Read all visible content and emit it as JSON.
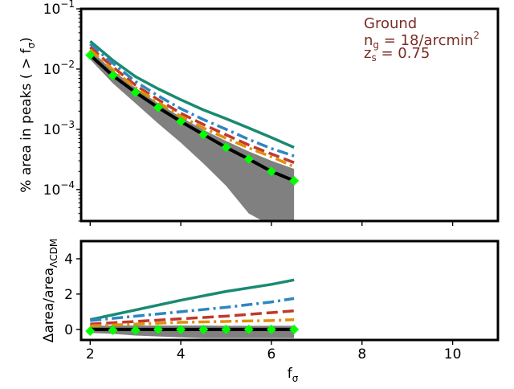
{
  "chart_data": [
    {
      "type": "line",
      "panel": "top",
      "ylabel_parts": {
        "main": "% area in peaks ( > f",
        "sub": "σ",
        "close": ")"
      },
      "yscale": "log",
      "ylim": [
        3e-05,
        0.1
      ],
      "xlim": [
        1.8,
        11.0
      ],
      "y_tick_labels": [
        {
          "value": 0.1,
          "base": "10",
          "exp": "−1"
        },
        {
          "value": 0.01,
          "base": "10",
          "exp": "−2"
        },
        {
          "value": 0.001,
          "base": "10",
          "exp": "−3"
        },
        {
          "value": 0.0001,
          "base": "10",
          "exp": "−4"
        }
      ],
      "annotation": {
        "line1": "Ground",
        "line2_main": "n",
        "line2_sub": "g",
        "line2_rest": " = 18/arcmin",
        "line2_sup": "2",
        "line3_main": "z",
        "line3_sub": "s",
        "line3_rest": " = 0.75",
        "color": "#7b2d26"
      },
      "band": {
        "color": "#808080",
        "x": [
          2.0,
          2.5,
          3.0,
          3.5,
          4.0,
          4.5,
          5.0,
          5.5,
          6.0,
          6.5
        ],
        "upper": [
          0.021,
          0.0095,
          0.0049,
          0.0027,
          0.0016,
          0.00098,
          0.00064,
          0.00043,
          0.0003,
          0.00022
        ],
        "lower": [
          0.0145,
          0.0058,
          0.0027,
          0.00125,
          0.0006,
          0.00027,
          0.000115,
          4e-05,
          2.5e-05,
          2.5e-05
        ]
      },
      "series": [
        {
          "color": "#1a8a72",
          "dash": "solid",
          "width": 3.5,
          "x": [
            2.0,
            2.5,
            3.0,
            3.5,
            4.0,
            4.5,
            5.0,
            5.5,
            6.0,
            6.5
          ],
          "y": [
            0.029,
            0.014,
            0.0075,
            0.0047,
            0.0031,
            0.0021,
            0.0015,
            0.00105,
            0.00073,
            0.0005
          ]
        },
        {
          "color": "#2e86c1",
          "dash": "dashdot",
          "width": 3.5,
          "x": [
            2.0,
            2.5,
            3.0,
            3.5,
            4.0,
            4.5,
            5.0,
            5.5,
            6.0,
            6.5
          ],
          "y": [
            0.026,
            0.0125,
            0.0062,
            0.0036,
            0.0022,
            0.00145,
            0.001,
            0.00068,
            0.00048,
            0.00036
          ]
        },
        {
          "color": "#c0392b",
          "dash": "dashed",
          "width": 3.5,
          "x": [
            2.0,
            2.5,
            3.0,
            3.5,
            4.0,
            4.5,
            5.0,
            5.5,
            6.0,
            6.5
          ],
          "y": [
            0.023,
            0.0108,
            0.0054,
            0.0031,
            0.00185,
            0.0012,
            0.00081,
            0.00055,
            0.00039,
            0.00028
          ]
        },
        {
          "color": "#e08e0b",
          "dash": "dashdot",
          "width": 3.5,
          "x": [
            2.0,
            2.5,
            3.0,
            3.5,
            4.0,
            4.5,
            5.0,
            5.5,
            6.0,
            6.5
          ],
          "y": [
            0.021,
            0.0098,
            0.0049,
            0.0028,
            0.00165,
            0.00105,
            0.00071,
            0.00049,
            0.00035,
            0.00024
          ]
        },
        {
          "color": "#000000",
          "dash": "solid",
          "width": 4,
          "x": [
            2.0,
            2.5,
            3.0,
            3.5,
            4.0,
            4.5,
            5.0,
            5.5,
            6.0,
            6.5
          ],
          "y": [
            0.017,
            0.0078,
            0.0041,
            0.0023,
            0.00135,
            0.00082,
            0.0005,
            0.00032,
            0.0002,
            0.00014
          ]
        },
        {
          "color": "#00ff00",
          "marker": "diamond",
          "dash": "none",
          "width": 0,
          "x": [
            2.0,
            2.5,
            3.0,
            3.5,
            4.0,
            4.5,
            5.0,
            5.5,
            6.0,
            6.5
          ],
          "y": [
            0.017,
            0.0078,
            0.0041,
            0.0023,
            0.00135,
            0.00082,
            0.0005,
            0.00032,
            0.0002,
            0.00014
          ]
        }
      ]
    },
    {
      "type": "line",
      "panel": "bottom",
      "ylabel_parts": {
        "main": "Δarea/area",
        "sub": "ΛCDM"
      },
      "xlabel_parts": {
        "main": "f",
        "sub": "σ"
      },
      "yscale": "linear",
      "ylim": [
        -0.6,
        5.0
      ],
      "xlim": [
        1.8,
        11.0
      ],
      "y_ticks": [
        0,
        2,
        4
      ],
      "y_tick_labels": [
        "0",
        "2",
        "4"
      ],
      "x_ticks": [
        2,
        4,
        6,
        8,
        10
      ],
      "x_tick_labels": [
        "2",
        "4",
        "6",
        "8",
        "10"
      ],
      "band": {
        "color": "#808080",
        "x": [
          2.0,
          2.5,
          3.0,
          3.5,
          4.0,
          4.5,
          5.0,
          5.5,
          6.0,
          6.5
        ],
        "upper": [
          0.2,
          0.22,
          0.22,
          0.22,
          0.22,
          0.22,
          0.2,
          0.2,
          0.2,
          0.2
        ],
        "lower": [
          -0.2,
          -0.25,
          -0.35,
          -0.4,
          -0.45,
          -0.5,
          -0.5,
          -0.5,
          -0.5,
          -0.5
        ]
      },
      "series": [
        {
          "color": "#1a8a72",
          "dash": "solid",
          "width": 3.5,
          "x": [
            2.0,
            3.0,
            4.0,
            5.0,
            6.0,
            6.5
          ],
          "y": [
            0.55,
            1.1,
            1.65,
            2.15,
            2.55,
            2.8
          ]
        },
        {
          "color": "#2e86c1",
          "dash": "dashdot",
          "width": 3.5,
          "x": [
            2.0,
            3.0,
            4.0,
            5.0,
            6.0,
            6.5
          ],
          "y": [
            0.5,
            0.75,
            1.0,
            1.25,
            1.55,
            1.75
          ]
        },
        {
          "color": "#c0392b",
          "dash": "dashed",
          "width": 3.5,
          "x": [
            2.0,
            3.0,
            4.0,
            5.0,
            6.0,
            6.5
          ],
          "y": [
            0.3,
            0.45,
            0.6,
            0.75,
            0.95,
            1.05
          ]
        },
        {
          "color": "#e08e0b",
          "dash": "dashdot",
          "width": 3.5,
          "x": [
            2.0,
            3.0,
            4.0,
            5.0,
            6.0,
            6.5
          ],
          "y": [
            0.2,
            0.3,
            0.4,
            0.45,
            0.5,
            0.55
          ]
        },
        {
          "color": "#000000",
          "dash": "solid",
          "width": 4,
          "x": [
            2.0,
            6.5
          ],
          "y": [
            0.0,
            0.0
          ]
        },
        {
          "color": "#00ff00",
          "marker": "diamond",
          "dash": "none",
          "width": 0,
          "x": [
            2.0,
            2.5,
            3.0,
            3.5,
            4.0,
            4.5,
            5.0,
            5.5,
            6.0,
            6.5
          ],
          "y": [
            -0.1,
            -0.05,
            -0.05,
            0.0,
            0.0,
            0.0,
            0.0,
            0.0,
            0.0,
            0.0
          ]
        }
      ]
    }
  ]
}
